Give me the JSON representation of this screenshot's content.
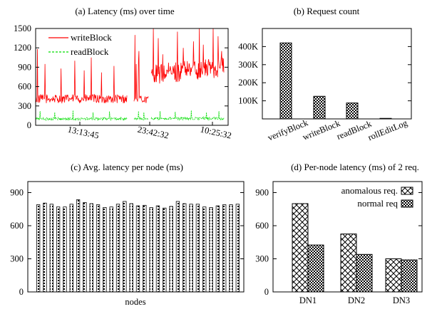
{
  "chart_data": [
    {
      "id": "a",
      "type": "line",
      "title": "(a) Latency (ms) over time",
      "xlabel": "",
      "ylabel": "",
      "ylim": [
        0,
        1500
      ],
      "yticks": [
        0,
        300,
        600,
        900,
        1200,
        1500
      ],
      "xticks": [
        "13:13:45",
        "23:42:32",
        "10:25:32"
      ],
      "grid": false,
      "legend_position": "top-left",
      "series": [
        {
          "name": "writeBlock",
          "color": "#ff0000",
          "style": "solid",
          "segments": [
            {
              "baseline": 410,
              "noise": 70,
              "spikes": [
                [
                  0.02,
                  1180
                ],
                [
                  0.1,
                  950
                ],
                [
                  0.28,
                  880
                ],
                [
                  0.43,
                  1000
                ],
                [
                  0.53,
                  850
                ],
                [
                  0.61,
                  1050
                ],
                [
                  0.72,
                  820
                ],
                [
                  0.86,
                  920
                ]
              ]
            },
            {
              "baseline": 400,
              "noise": 60,
              "spikes": [
                [
                  0.05,
                  1400
                ],
                [
                  0.15,
                  950
                ],
                [
                  0.3,
                  1000
                ],
                [
                  0.35,
                  1150
                ]
              ]
            },
            {
              "baseline": 780,
              "noise": 160,
              "trend": 130,
              "spikes": [
                [
                  0.03,
                  1500
                ],
                [
                  0.1,
                  1350
                ],
                [
                  0.16,
                  1100
                ],
                [
                  0.36,
                  1450
                ],
                [
                  0.44,
                  1200
                ],
                [
                  0.58,
                  1300
                ],
                [
                  0.66,
                  1500
                ],
                [
                  0.72,
                  1250
                ],
                [
                  0.85,
                  1500
                ],
                [
                  0.92,
                  1380
                ],
                [
                  0.97,
                  1150
                ]
              ]
            }
          ]
        },
        {
          "name": "readBlock",
          "color": "#00dd00",
          "style": "dashed",
          "segments": [
            {
              "baseline": 100,
              "noise": 22,
              "spikes": [
                [
                  0.05,
                  220
                ],
                [
                  0.21,
                  200
                ],
                [
                  0.41,
                  230
                ],
                [
                  0.63,
                  200
                ],
                [
                  0.81,
                  215
                ]
              ]
            },
            {
              "baseline": 100,
              "noise": 22,
              "spikes": [
                [
                  0.3,
                  220
                ],
                [
                  0.7,
                  200
                ]
              ]
            },
            {
              "baseline": 105,
              "noise": 22,
              "spikes": [
                [
                  0.12,
                  220
                ],
                [
                  0.33,
                  210
                ],
                [
                  0.55,
                  230
                ],
                [
                  0.76,
                  200
                ],
                [
                  0.93,
                  220
                ]
              ]
            }
          ]
        }
      ]
    },
    {
      "id": "b",
      "type": "bar",
      "title": "(b) Request count",
      "categories": [
        "verifyBlock",
        "writeBlock",
        "readBlock",
        "rollEditLog"
      ],
      "values": [
        420000,
        125000,
        88000,
        3000
      ],
      "ylim": [
        0,
        500000
      ],
      "yticks": [
        "100K",
        "200K",
        "300K",
        "400K"
      ],
      "ytick_values": [
        100000,
        200000,
        300000,
        400000
      ],
      "grid": false
    },
    {
      "id": "c",
      "type": "bar",
      "title": "(c) Avg. latency per node (ms)",
      "xlabel": "nodes",
      "ylim": [
        0,
        1000
      ],
      "yticks": [
        0,
        300,
        600,
        900
      ],
      "values": [
        790,
        805,
        795,
        770,
        770,
        795,
        835,
        810,
        800,
        790,
        765,
        770,
        795,
        820,
        800,
        780,
        785,
        765,
        780,
        760,
        775,
        820,
        800,
        795,
        795,
        770,
        765,
        780,
        790,
        790,
        795
      ],
      "grid": false
    },
    {
      "id": "d",
      "type": "bar",
      "title": "(d) Per-node latency (ms) of 2 req.",
      "categories": [
        "DN1",
        "DN2",
        "DN3"
      ],
      "ylim": [
        0,
        1000
      ],
      "yticks": [
        0,
        300,
        600,
        900
      ],
      "legend_position": "top-right",
      "series": [
        {
          "name": "anomalous req.",
          "pattern": "cross",
          "values": [
            800,
            525,
            300
          ]
        },
        {
          "name": "normal req",
          "pattern": "check",
          "values": [
            425,
            340,
            290
          ]
        }
      ],
      "grid": false
    }
  ]
}
